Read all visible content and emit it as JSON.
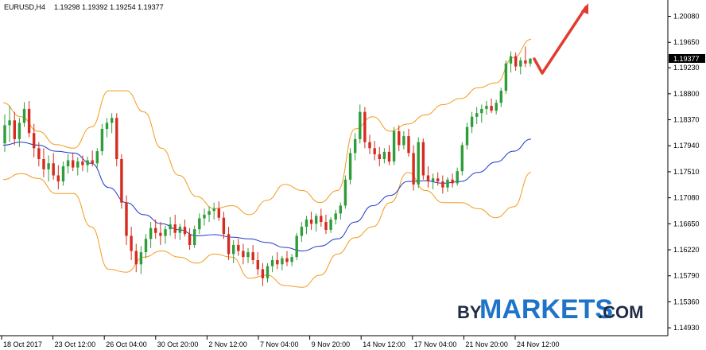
{
  "header": {
    "symbol": "EURUSD,H4",
    "ohlc": "1.19298 1.19392 1.19254 1.19377"
  },
  "watermark": {
    "by": "BY",
    "markets": "MARKETS",
    "com": ".COM"
  },
  "colors": {
    "bull": "#2e9d3a",
    "bear": "#d62b1f",
    "band": "#f29b1d",
    "ma": "#1f36c9",
    "arrow": "#e23b2f",
    "grid": "#c8c8c8"
  },
  "chart_data": {
    "type": "candlestick",
    "title": "EURUSD,H4",
    "ylim": [
      1.148,
      1.2035
    ],
    "y_ticks": [
      "1.20080",
      "1.19650",
      "1.19230",
      "1.18800",
      "1.18370",
      "1.17940",
      "1.17510",
      "1.17080",
      "1.16650",
      "1.16220",
      "1.15790",
      "1.15360",
      "1.14930"
    ],
    "x_ticks": [
      "18 Oct 2017",
      "23 Oct 12:00",
      "26 Oct 04:00",
      "30 Oct 20:00",
      "2 Nov 12:00",
      "7 Nov 04:00",
      "9 Nov 20:00",
      "14 Nov 12:00",
      "17 Nov 04:00",
      "21 Nov 20:00",
      "24 Nov 12:00"
    ],
    "current_price": "1.19377",
    "grid": false,
    "ohlc": [
      [
        1.1798,
        1.1846,
        1.1784,
        1.1828
      ],
      [
        1.1828,
        1.186,
        1.18,
        1.1836
      ],
      [
        1.1836,
        1.185,
        1.1795,
        1.1805
      ],
      [
        1.1805,
        1.184,
        1.1792,
        1.1832
      ],
      [
        1.1832,
        1.1866,
        1.1825,
        1.1855
      ],
      [
        1.1855,
        1.1868,
        1.1808,
        1.1815
      ],
      [
        1.1815,
        1.183,
        1.1775,
        1.179
      ],
      [
        1.179,
        1.18,
        1.176,
        1.1772
      ],
      [
        1.1772,
        1.179,
        1.1742,
        1.1755
      ],
      [
        1.1755,
        1.1778,
        1.1735,
        1.1765
      ],
      [
        1.1765,
        1.1782,
        1.1738,
        1.1745
      ],
      [
        1.1745,
        1.1762,
        1.1722,
        1.1735
      ],
      [
        1.1735,
        1.1768,
        1.1728,
        1.176
      ],
      [
        1.176,
        1.178,
        1.1748,
        1.177
      ],
      [
        1.177,
        1.1782,
        1.1752,
        1.1758
      ],
      [
        1.1758,
        1.1775,
        1.1745,
        1.1768
      ],
      [
        1.1768,
        1.1778,
        1.1752,
        1.1762
      ],
      [
        1.1762,
        1.1776,
        1.175,
        1.177
      ],
      [
        1.177,
        1.1786,
        1.176,
        1.1765
      ],
      [
        1.1765,
        1.179,
        1.1758,
        1.1785
      ],
      [
        1.1785,
        1.183,
        1.1778,
        1.1822
      ],
      [
        1.1822,
        1.184,
        1.1808,
        1.1832
      ],
      [
        1.1832,
        1.1848,
        1.1815,
        1.184
      ],
      [
        1.184,
        1.1848,
        1.176,
        1.1772
      ],
      [
        1.1772,
        1.178,
        1.169,
        1.17
      ],
      [
        1.17,
        1.1712,
        1.163,
        1.1645
      ],
      [
        1.1645,
        1.166,
        1.1605,
        1.162
      ],
      [
        1.162,
        1.1632,
        1.1585,
        1.1598
      ],
      [
        1.1598,
        1.1628,
        1.1582,
        1.1618
      ],
      [
        1.1618,
        1.1648,
        1.1608,
        1.164
      ],
      [
        1.164,
        1.1668,
        1.1625,
        1.1658
      ],
      [
        1.1658,
        1.1672,
        1.164,
        1.165
      ],
      [
        1.165,
        1.1668,
        1.163,
        1.1645
      ],
      [
        1.1645,
        1.1662,
        1.1632,
        1.1656
      ],
      [
        1.1656,
        1.1676,
        1.1645,
        1.1664
      ],
      [
        1.1664,
        1.168,
        1.164,
        1.165
      ],
      [
        1.165,
        1.1665,
        1.1638,
        1.166
      ],
      [
        1.166,
        1.1672,
        1.1644,
        1.1648
      ],
      [
        1.1648,
        1.1658,
        1.1622,
        1.163
      ],
      [
        1.163,
        1.1662,
        1.1625,
        1.1656
      ],
      [
        1.1656,
        1.1682,
        1.1648,
        1.1674
      ],
      [
        1.1674,
        1.169,
        1.1662,
        1.168
      ],
      [
        1.168,
        1.1694,
        1.1668,
        1.1686
      ],
      [
        1.1686,
        1.17,
        1.1672,
        1.169
      ],
      [
        1.169,
        1.1702,
        1.167,
        1.1675
      ],
      [
        1.1675,
        1.1685,
        1.164,
        1.1648
      ],
      [
        1.1648,
        1.166,
        1.1605,
        1.1615
      ],
      [
        1.1615,
        1.1638,
        1.16,
        1.163
      ],
      [
        1.163,
        1.164,
        1.1612,
        1.162
      ],
      [
        1.162,
        1.1632,
        1.1598,
        1.161
      ],
      [
        1.161,
        1.1625,
        1.16,
        1.1618
      ],
      [
        1.1618,
        1.163,
        1.1598,
        1.1605
      ],
      [
        1.1605,
        1.1618,
        1.158,
        1.159
      ],
      [
        1.159,
        1.16,
        1.1562,
        1.1575
      ],
      [
        1.1575,
        1.16,
        1.1568,
        1.1595
      ],
      [
        1.1595,
        1.1612,
        1.1585,
        1.1605
      ],
      [
        1.1605,
        1.1618,
        1.159,
        1.1598
      ],
      [
        1.1598,
        1.1612,
        1.1588,
        1.1608
      ],
      [
        1.1608,
        1.162,
        1.1595,
        1.1602
      ],
      [
        1.1602,
        1.1615,
        1.1595,
        1.161
      ],
      [
        1.161,
        1.165,
        1.1605,
        1.1645
      ],
      [
        1.1645,
        1.1668,
        1.1635,
        1.166
      ],
      [
        1.166,
        1.1678,
        1.1648,
        1.1672
      ],
      [
        1.1672,
        1.1685,
        1.1655,
        1.1665
      ],
      [
        1.1665,
        1.1682,
        1.1652,
        1.1678
      ],
      [
        1.1678,
        1.169,
        1.166,
        1.1668
      ],
      [
        1.1668,
        1.168,
        1.1648,
        1.1655
      ],
      [
        1.1655,
        1.1676,
        1.165,
        1.1672
      ],
      [
        1.1672,
        1.1688,
        1.1664,
        1.1682
      ],
      [
        1.1682,
        1.17,
        1.1672,
        1.1695
      ],
      [
        1.1695,
        1.1745,
        1.169,
        1.1738
      ],
      [
        1.1738,
        1.179,
        1.173,
        1.1782
      ],
      [
        1.1782,
        1.1815,
        1.177,
        1.1805
      ],
      [
        1.1805,
        1.1862,
        1.1798,
        1.185
      ],
      [
        1.185,
        1.1858,
        1.179,
        1.18
      ],
      [
        1.18,
        1.1812,
        1.178,
        1.179
      ],
      [
        1.179,
        1.1802,
        1.177,
        1.178
      ],
      [
        1.178,
        1.1792,
        1.176,
        1.1772
      ],
      [
        1.1772,
        1.179,
        1.1765,
        1.1784
      ],
      [
        1.1784,
        1.1795,
        1.1762,
        1.1768
      ],
      [
        1.1768,
        1.1825,
        1.1762,
        1.1818
      ],
      [
        1.1818,
        1.1828,
        1.1785,
        1.1795
      ],
      [
        1.1795,
        1.1818,
        1.1788,
        1.181
      ],
      [
        1.181,
        1.1822,
        1.1776,
        1.1782
      ],
      [
        1.1782,
        1.1795,
        1.172,
        1.173
      ],
      [
        1.173,
        1.1808,
        1.1724,
        1.18
      ],
      [
        1.18,
        1.1806,
        1.1738,
        1.1745
      ],
      [
        1.1745,
        1.176,
        1.1725,
        1.1735
      ],
      [
        1.1735,
        1.1748,
        1.1722,
        1.174
      ],
      [
        1.174,
        1.175,
        1.1728,
        1.1735
      ],
      [
        1.1735,
        1.1745,
        1.1715,
        1.1725
      ],
      [
        1.1725,
        1.1742,
        1.1718,
        1.1738
      ],
      [
        1.1738,
        1.1748,
        1.1725,
        1.1732
      ],
      [
        1.1732,
        1.1758,
        1.1728,
        1.1752
      ],
      [
        1.1752,
        1.18,
        1.1745,
        1.1795
      ],
      [
        1.1795,
        1.1832,
        1.1788,
        1.1825
      ],
      [
        1.1825,
        1.185,
        1.1815,
        1.1842
      ],
      [
        1.1842,
        1.1858,
        1.183,
        1.1848
      ],
      [
        1.1848,
        1.1862,
        1.1832,
        1.1855
      ],
      [
        1.1855,
        1.1868,
        1.1845,
        1.186
      ],
      [
        1.186,
        1.1872,
        1.1848,
        1.1852
      ],
      [
        1.1852,
        1.187,
        1.1846,
        1.1865
      ],
      [
        1.1865,
        1.189,
        1.1858,
        1.1885
      ],
      [
        1.1885,
        1.1935,
        1.188,
        1.193
      ],
      [
        1.193,
        1.195,
        1.1915,
        1.1942
      ],
      [
        1.1942,
        1.1948,
        1.1918,
        1.1925
      ],
      [
        1.1925,
        1.194,
        1.1912,
        1.1935
      ],
      [
        1.1935,
        1.1958,
        1.1924,
        1.193
      ],
      [
        1.193,
        1.1939,
        1.1925,
        1.1938
      ]
    ],
    "bb_upper": [
      1.1865,
      1.1842,
      1.1818,
      1.1796,
      1.179,
      1.1825,
      1.1885,
      1.1885,
      1.185,
      1.179,
      1.1745,
      1.171,
      1.169,
      1.1695,
      1.168,
      1.1704,
      1.173,
      1.172,
      1.17,
      1.172,
      1.1822,
      1.1842,
      1.1818,
      1.183,
      1.1845,
      1.1862,
      1.1872,
      1.189,
      1.1898,
      1.194,
      1.197
    ],
    "bb_lower": [
      1.1738,
      1.1748,
      1.174,
      1.1715,
      1.1715,
      1.166,
      1.159,
      1.1585,
      1.161,
      1.162,
      1.161,
      1.16,
      1.1615,
      1.161,
      1.1575,
      1.158,
      1.1563,
      1.156,
      1.158,
      1.1615,
      1.1642,
      1.166,
      1.17,
      1.175,
      1.172,
      1.17,
      1.17,
      1.169,
      1.1675,
      1.1693,
      1.175
    ],
    "ma": [
      1.1795,
      1.18,
      1.1795,
      1.1785,
      1.1782,
      1.1765,
      1.1725,
      1.17,
      1.168,
      1.1665,
      1.1655,
      1.1645,
      1.1647,
      1.1643,
      1.164,
      1.1634,
      1.1626,
      1.162,
      1.1628,
      1.164,
      1.1668,
      1.1695,
      1.1712,
      1.1735,
      1.1736,
      1.1732,
      1.1735,
      1.175,
      1.1767,
      1.1785,
      1.1805
    ]
  }
}
